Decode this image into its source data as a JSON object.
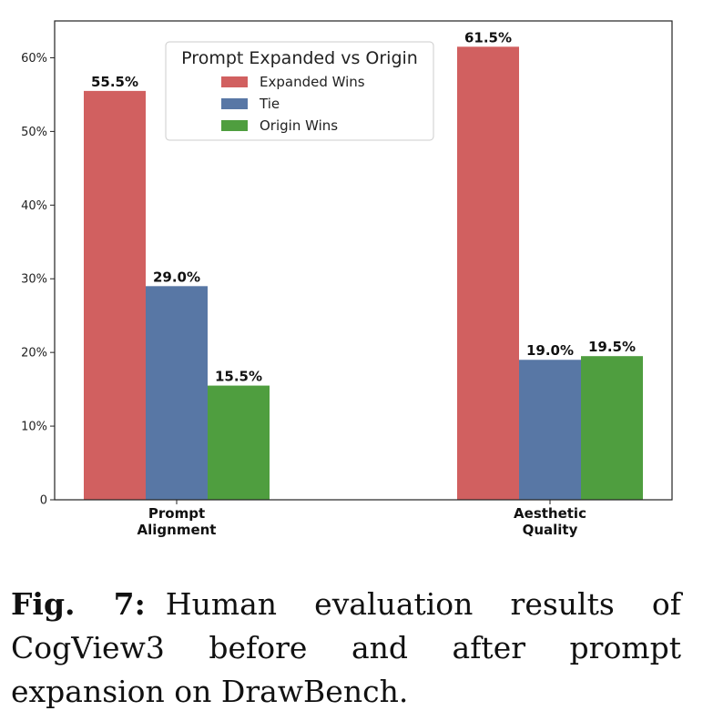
{
  "chart_data": {
    "type": "bar",
    "categories": [
      "Prompt\nAlignment",
      "Aesthetic\nQuality"
    ],
    "series": [
      {
        "name": "Expanded Wins",
        "values": [
          55.5,
          61.5
        ],
        "color": "#d16060"
      },
      {
        "name": "Tie",
        "values": [
          29.0,
          19.0
        ],
        "color": "#5877a5"
      },
      {
        "name": "Origin Wins",
        "values": [
          15.5,
          19.5
        ],
        "color": "#4f9e3f"
      }
    ],
    "data_labels": [
      [
        "55.5%",
        "61.5%"
      ],
      [
        "29.0%",
        "19.0%"
      ],
      [
        "15.5%",
        "19.5%"
      ]
    ],
    "yticks": [
      0,
      10,
      20,
      30,
      40,
      50,
      60
    ],
    "ytick_labels": [
      "0",
      "10%",
      "20%",
      "30%",
      "40%",
      "50%",
      "60%"
    ],
    "ylim": [
      0,
      65
    ],
    "legend_title": "Prompt Expanded vs Origin",
    "legend_position": "top-center",
    "grid": false
  },
  "caption": {
    "label": "Fig. 7:",
    "text": "Human evaluation results of CogView3 before and after prompt expansion on DrawBench."
  }
}
